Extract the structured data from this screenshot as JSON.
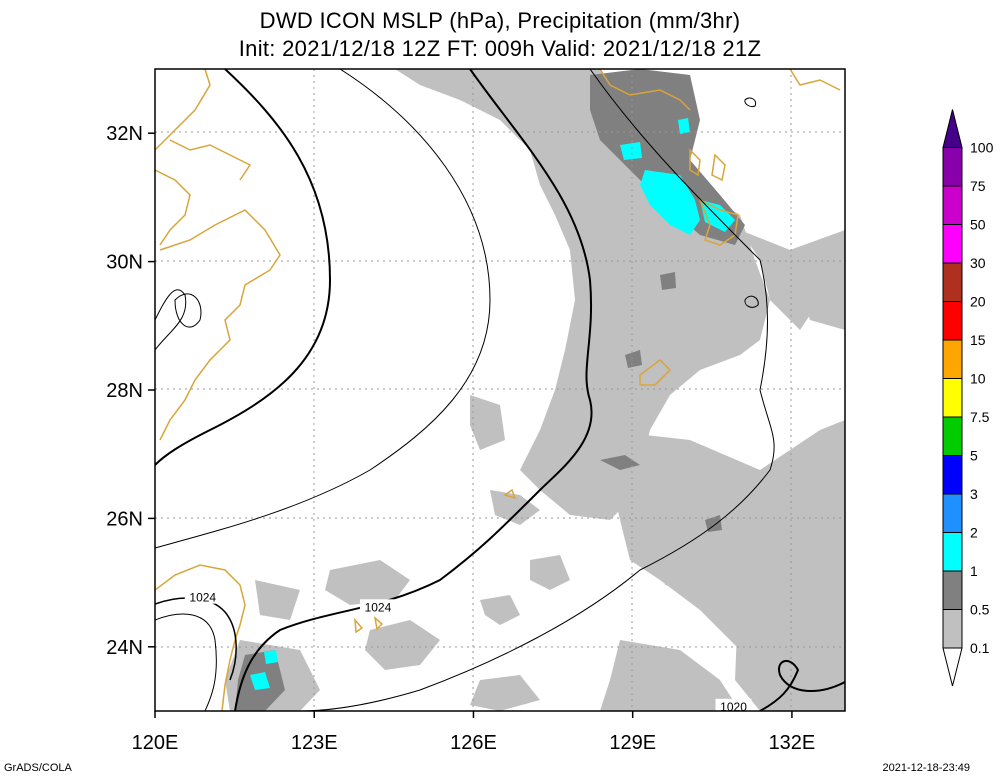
{
  "title_line1": "DWD ICON MSLP (hPa), Precipitation (mm/3hr)",
  "title_line2": "Init: 2021/12/18 12Z  FT: 009h  Valid: 2021/12/18 21Z",
  "footer_left": "GrADS/COLA",
  "footer_right": "2021-12-18-23:49",
  "map": {
    "lon_range": [
      120,
      133
    ],
    "lat_range": [
      23,
      33
    ],
    "lon_ticks": [
      {
        "value": 120,
        "label": "120E"
      },
      {
        "value": 123,
        "label": "123E"
      },
      {
        "value": 126,
        "label": "126E"
      },
      {
        "value": 129,
        "label": "129E"
      },
      {
        "value": 132,
        "label": "132E"
      }
    ],
    "lat_ticks": [
      {
        "value": 24,
        "label": "24N"
      },
      {
        "value": 26,
        "label": "26N"
      },
      {
        "value": 28,
        "label": "28N"
      },
      {
        "value": 30,
        "label": "30N"
      },
      {
        "value": 32,
        "label": "32N"
      }
    ],
    "grid": true,
    "contour_labels": [
      {
        "text": "1024",
        "lon": 120.9,
        "lat": 24.75
      },
      {
        "text": "1024",
        "lon": 124.2,
        "lat": 24.6
      },
      {
        "text": "1020",
        "lon": 130.9,
        "lat": 23.05
      }
    ],
    "colors": {
      "coast": "#d9a53a",
      "precip_light": "#c0c0c0",
      "precip_mid": "#808080",
      "precip_heavy": "#00ffff"
    }
  },
  "colorbar": {
    "levels": [
      "0.1",
      "0.5",
      "1",
      "2",
      "3",
      "5",
      "7.5",
      "10",
      "15",
      "20",
      "30",
      "50",
      "75",
      "100"
    ],
    "colors": [
      "#ffffff",
      "#c0c0c0",
      "#808080",
      "#00ffff",
      "#1e90ff",
      "#0000ff",
      "#00cc00",
      "#ffff00",
      "#ffa500",
      "#ff0000",
      "#b03020",
      "#ff00ff",
      "#cc00cc",
      "#8800aa",
      "#440088"
    ]
  }
}
